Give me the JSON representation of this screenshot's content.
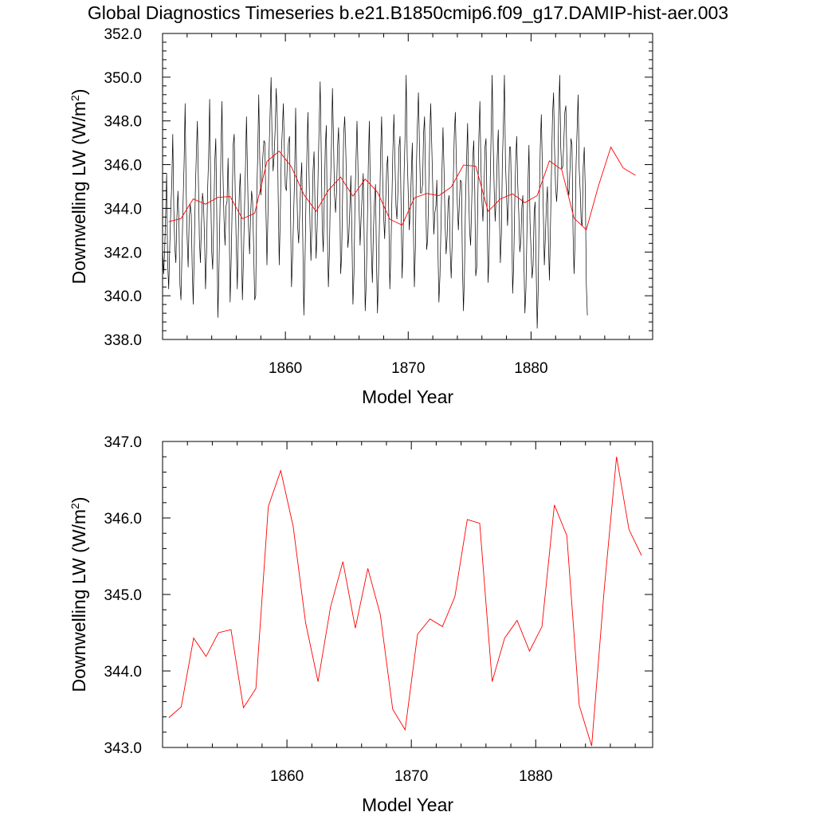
{
  "title": "Global Diagnostics Timeseries b.e21.B1850cmip6.f09_g17.DAMIP-hist-aer.003",
  "chart_data": [
    {
      "type": "line",
      "xlabel": "Model Year",
      "ylabel": "Downwelling LW (W/m",
      "ylabel_sup": "2",
      "ylabel_close": ")",
      "xlim": [
        1850.0,
        1889.9
      ],
      "ylim": [
        338.0,
        352.0
      ],
      "xticks": [
        "1860",
        "1870",
        "1880"
      ],
      "yticks": [
        "338.0",
        "340.0",
        "342.0",
        "344.0",
        "346.0",
        "348.0",
        "350.0",
        "352.0"
      ],
      "colors": {
        "monthly": "#000000",
        "annual": "#ff0000"
      },
      "series": [
        {
          "kind": "monthly",
          "x_start": 1850.0,
          "x_step": 0.0833333,
          "values": [
            342.2,
            341.0,
            342.0,
            343.8,
            345.6,
            341.5,
            340.3,
            342.2,
            343.9,
            345.2,
            347.4,
            344.0,
            342.2,
            341.5,
            343.6,
            344.8,
            343.3,
            340.5,
            339.8,
            342.0,
            344.2,
            346.0,
            348.8,
            345.1,
            342.7,
            341.3,
            343.5,
            344.2,
            343.7,
            341.3,
            339.6,
            342.2,
            344.7,
            346.5,
            348.0,
            345.2,
            342.6,
            341.5,
            343.3,
            344.7,
            344.2,
            342.6,
            340.3,
            342.0,
            344.8,
            346.3,
            349.0,
            344.8,
            342.0,
            341.2,
            343.4,
            346.1,
            347.2,
            343.5,
            339.0,
            340.9,
            343.6,
            346.4,
            348.9,
            345.6,
            343.5,
            342.3,
            344.1,
            344.3,
            346.3,
            343.8,
            339.7,
            341.6,
            344.0,
            346.9,
            347.4,
            344.7,
            342.3,
            340.3,
            342.9,
            344.7,
            345.6,
            342.6,
            339.8,
            341.6,
            344.0,
            345.8,
            348.2,
            345.6,
            343.1,
            341.9,
            343.7,
            344.8,
            344.3,
            342.2,
            339.8,
            340.0,
            344.5,
            346.6,
            349.2,
            346.2,
            344.6,
            345.3,
            346.4,
            347.1,
            347.0,
            344.0,
            341.4,
            343.8,
            346.5,
            348.3,
            350.0,
            347.2,
            345.7,
            346.4,
            347.6,
            349.5,
            348.2,
            344.5,
            341.4,
            343.6,
            346.5,
            347.6,
            348.8,
            346.6,
            345.0,
            344.8,
            346.2,
            347.0,
            347.3,
            343.8,
            340.4,
            341.7,
            343.6,
            345.4,
            348.6,
            345.3,
            343.2,
            342.4,
            343.7,
            345.2,
            346.1,
            342.5,
            339.1,
            341.0,
            344.0,
            346.4,
            348.4,
            345.8,
            343.3,
            341.6,
            343.3,
            345.7,
            346.6,
            343.9,
            341.7,
            343.1,
            345.6,
            347.8,
            349.8,
            346.6,
            343.1,
            342.0,
            344.3,
            346.8,
            347.8,
            342.9,
            340.4,
            342.0,
            345.0,
            346.8,
            349.5,
            347.2,
            344.6,
            343.8,
            344.8,
            346.8,
            347.7,
            345.1,
            341.0,
            341.9,
            345.0,
            347.4,
            348.2,
            346.7,
            344.6,
            342.2,
            342.8,
            344.1,
            345.5,
            342.8,
            339.6,
            341.0,
            344.4,
            346.3,
            348.0,
            345.7,
            344.0,
            342.3,
            343.6,
            344.6,
            345.6,
            342.6,
            339.3,
            340.6,
            343.1,
            346.0,
            348.0,
            344.9,
            342.1,
            340.6,
            343.0,
            344.3,
            345.1,
            341.5,
            339.2,
            341.0,
            343.6,
            346.5,
            348.2,
            345.4,
            343.7,
            342.6,
            344.3,
            345.9,
            346.4,
            343.7,
            340.3,
            341.8,
            344.2,
            346.6,
            348.3,
            346.2,
            344.1,
            343.5,
            344.8,
            346.8,
            347.3,
            344.2,
            340.8,
            342.3,
            345.6,
            347.4,
            350.1,
            346.4,
            344.7,
            343.0,
            343.9,
            345.5,
            347.0,
            343.3,
            340.4,
            342.2,
            345.8,
            347.8,
            349.3,
            346.8,
            344.7,
            344.7,
            345.1,
            347.4,
            348.2,
            345.0,
            342.1,
            342.6,
            344.8,
            347.2,
            348.8,
            346.9,
            344.9,
            342.8,
            343.8,
            344.1,
            345.3,
            342.3,
            339.7,
            340.9,
            343.2,
            345.8,
            347.7,
            345.8,
            343.4,
            341.9,
            342.7,
            344.3,
            344.6,
            342.1,
            340.8,
            342.5,
            345.2,
            347.4,
            348.4,
            346.2,
            344.2,
            343.0,
            344.3,
            345.3,
            345.2,
            341.4,
            339.3,
            341.1,
            344.4,
            346.2,
            347.9,
            344.7,
            343.0,
            342.3,
            344.2,
            346.2,
            347.1,
            344.8,
            340.9,
            341.3,
            344.4,
            347.2,
            348.9,
            345.9,
            344.3,
            343.4,
            344.7,
            346.8,
            347.2,
            344.0,
            340.6,
            341.8,
            344.9,
            347.4,
            350.1,
            347.0,
            344.8,
            343.4,
            344.6,
            346.4,
            347.6,
            344.0,
            341.5,
            342.8,
            346.1,
            347.8,
            350.1,
            346.1,
            344.7,
            343.2,
            344.3,
            346.8,
            346.8,
            344.3,
            340.1,
            341.4,
            344.1,
            346.1,
            347.3,
            345.1,
            343.8,
            342.0,
            342.5,
            344.0,
            344.6,
            341.7,
            339.2,
            340.3,
            343.0,
            345.2,
            346.9,
            343.4,
            342.1,
            340.8,
            341.4,
            343.8,
            344.3,
            341.3,
            338.5,
            340.3,
            344.2,
            346.8,
            348.3,
            346.1,
            343.9,
            341.4,
            342.7,
            344.2,
            345.0,
            342.5,
            340.7,
            343.2,
            345.9,
            348.3,
            349.3,
            346.7,
            345.0,
            344.3,
            345.2,
            348.3,
            350.1,
            346.8,
            345.8,
            345.9,
            347.0,
            348.4,
            348.7,
            346.2,
            344.9,
            344.6,
            345.7,
            347.2,
            346.9,
            342.9,
            341.0,
            342.5,
            346.0,
            347.6,
            349.2,
            345.8,
            344.8,
            343.4,
            343.2,
            345.9,
            346.8,
            344.8,
            340.5,
            339.1
          ]
        },
        {
          "kind": "annual",
          "x_start": 1850.5,
          "x_step": 1.0,
          "values": [
            343.39,
            343.53,
            344.43,
            344.19,
            344.5,
            344.54,
            343.52,
            343.77,
            346.15,
            346.62,
            345.89,
            344.63,
            343.86,
            344.83,
            345.43,
            344.56,
            345.34,
            344.74,
            343.5,
            343.23,
            344.48,
            344.68,
            344.58,
            344.97,
            345.98,
            345.93,
            343.86,
            344.43,
            344.66,
            344.26,
            344.58,
            346.17,
            345.77,
            343.55,
            343.02,
            345.05,
            346.8,
            345.85,
            345.51
          ]
        }
      ]
    },
    {
      "type": "line",
      "xlabel": "Model Year",
      "ylabel": "Downwelling LW (W/m",
      "ylabel_sup": "2",
      "ylabel_close": ")",
      "xlim": [
        1850.0,
        1889.4
      ],
      "ylim": [
        343.0,
        347.0
      ],
      "xticks": [
        "1860",
        "1870",
        "1880"
      ],
      "yticks": [
        "343.0",
        "344.0",
        "345.0",
        "346.0",
        "347.0"
      ],
      "colors": {
        "annual": "#ff0000"
      },
      "series": [
        {
          "kind": "annual",
          "x_start": 1850.5,
          "x_step": 1.0,
          "values": [
            343.39,
            343.53,
            344.43,
            344.19,
            344.5,
            344.54,
            343.52,
            343.77,
            346.15,
            346.62,
            345.89,
            344.63,
            343.86,
            344.83,
            345.43,
            344.56,
            345.34,
            344.74,
            343.5,
            343.23,
            344.48,
            344.68,
            344.58,
            344.97,
            345.98,
            345.93,
            343.86,
            344.43,
            344.66,
            344.26,
            344.58,
            346.17,
            345.77,
            343.55,
            343.02,
            345.05,
            346.8,
            345.85,
            345.51
          ]
        }
      ]
    }
  ]
}
